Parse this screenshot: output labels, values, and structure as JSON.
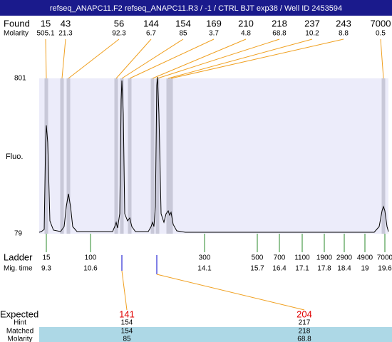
{
  "header": {
    "title": "refseq_ANAPC11.F2  refseq_ANAPC11.R3 / -1 / CTRL BJT  exp38 / Well ID 2453594"
  },
  "found": {
    "label": "Found",
    "molarity_label": "Molarity",
    "peaks": [
      {
        "size": 15,
        "molarity": 505.1
      },
      {
        "size": 43,
        "molarity": 21.3
      },
      {
        "size": 56,
        "molarity": 92.3
      },
      {
        "size": 144,
        "molarity": 6.7
      },
      {
        "size": 154,
        "molarity": 85
      },
      {
        "size": 169,
        "molarity": 3.7
      },
      {
        "size": 210,
        "molarity": 4.8
      },
      {
        "size": 218,
        "molarity": 68.8
      },
      {
        "size": 237,
        "molarity": 10.2
      },
      {
        "size": 243,
        "molarity": 8.8
      },
      {
        "size": 7000,
        "molarity": 0.5
      }
    ]
  },
  "plot": {
    "y_label": "Fluo.",
    "y_top": 801,
    "y_bottom": 79
  },
  "ladder": {
    "label": "Ladder",
    "time_label": "Mig. time",
    "markers": [
      {
        "size": 15,
        "time": 9.3
      },
      {
        "size": 100,
        "time": 10.6
      },
      {
        "size": 300,
        "time": 14.1
      },
      {
        "size": 500,
        "time": 15.7
      },
      {
        "size": 700,
        "time": 16.4
      },
      {
        "size": 1100,
        "time": 17.1
      },
      {
        "size": 1900,
        "time": 17.8
      },
      {
        "size": 2900,
        "time": 18.4
      },
      {
        "size": 4900,
        "time": 19
      },
      {
        "size": 7000,
        "time": 19.6
      }
    ]
  },
  "expected": {
    "label": "Expected",
    "hint_label": "Hint",
    "matched_label": "Matched",
    "molarity_label": "Molarity",
    "columns": [
      {
        "expected": 141,
        "hint": 154,
        "matched": 154,
        "molarity": 85
      },
      {
        "expected": 204,
        "hint": 217,
        "matched": 218,
        "molarity": 68.8
      }
    ]
  }
}
